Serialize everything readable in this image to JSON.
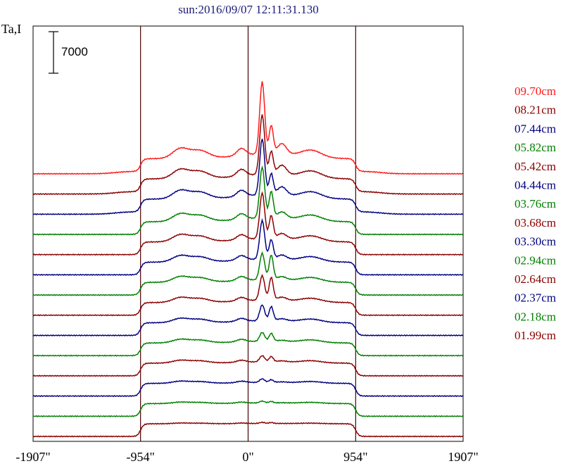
{
  "title": "sun:2016/09/07 12:11:31.130",
  "y_axis_label": "Ta,I",
  "scale_bar_label": "7000",
  "colors": {
    "title": "#1a1a7a",
    "red": "#ff1a1a",
    "dark_red": "#8b0000",
    "navy": "#000080",
    "green": "#008000",
    "axes": "#000000",
    "vline": "#4a0000"
  },
  "chart_data": {
    "type": "line",
    "title": "sun:2016/09/07 12:11:31.130",
    "ylabel": "Ta,I",
    "xlim": [
      -1907,
      1907
    ],
    "x_ticks": [
      {
        "value": -1907,
        "label": "-1907\""
      },
      {
        "value": -954,
        "label": "-954\""
      },
      {
        "value": 0,
        "label": "0\""
      },
      {
        "value": 954,
        "label": "954\""
      },
      {
        "value": 1907,
        "label": "1907\""
      }
    ],
    "vertical_lines": [
      -954,
      0,
      954
    ],
    "scale_bar_value": 7000,
    "series": [
      {
        "name": "09.70cm",
        "color": "#ff1a1a",
        "peaks": [
          4.1,
          1.6,
          1.0
        ],
        "base": 1.0
      },
      {
        "name": "08.21cm",
        "color": "#8b0000",
        "peaks": [
          3.4,
          1.3,
          0.9
        ],
        "base": 1.0
      },
      {
        "name": "07.44cm",
        "color": "#000080",
        "peaks": [
          3.2,
          1.2,
          0.8
        ],
        "base": 1.0
      },
      {
        "name": "05.82cm",
        "color": "#008000",
        "peaks": [
          2.9,
          1.5,
          0.6
        ],
        "base": 1.0
      },
      {
        "name": "05.42cm",
        "color": "#8b0000",
        "peaks": [
          2.6,
          1.3,
          0.5
        ],
        "base": 1.0
      },
      {
        "name": "04.44cm",
        "color": "#000080",
        "peaks": [
          2.2,
          1.1,
          0.4
        ],
        "base": 1.0
      },
      {
        "name": "03.76cm",
        "color": "#008000",
        "peaks": [
          1.5,
          1.4,
          0.3
        ],
        "base": 1.0
      },
      {
        "name": "03.68cm",
        "color": "#8b0000",
        "peaks": [
          1.4,
          1.3,
          0.3
        ],
        "base": 1.0
      },
      {
        "name": "03.30cm",
        "color": "#000080",
        "peaks": [
          0.9,
          0.8,
          0.2
        ],
        "base": 1.0
      },
      {
        "name": "02.94cm",
        "color": "#008000",
        "peaks": [
          0.5,
          0.45,
          0.1
        ],
        "base": 1.0
      },
      {
        "name": "02.64cm",
        "color": "#8b0000",
        "peaks": [
          0.35,
          0.3,
          0.1
        ],
        "base": 1.0
      },
      {
        "name": "02.37cm",
        "color": "#000080",
        "peaks": [
          0.2,
          0.15,
          0.05
        ],
        "base": 1.0
      },
      {
        "name": "02.18cm",
        "color": "#008000",
        "peaks": [
          0.1,
          0.08,
          0.02
        ],
        "base": 1.0
      },
      {
        "name": "01.99cm",
        "color": "#8b0000",
        "peaks": [
          0.06,
          0.05,
          0.0
        ],
        "base": 1.0
      }
    ]
  }
}
